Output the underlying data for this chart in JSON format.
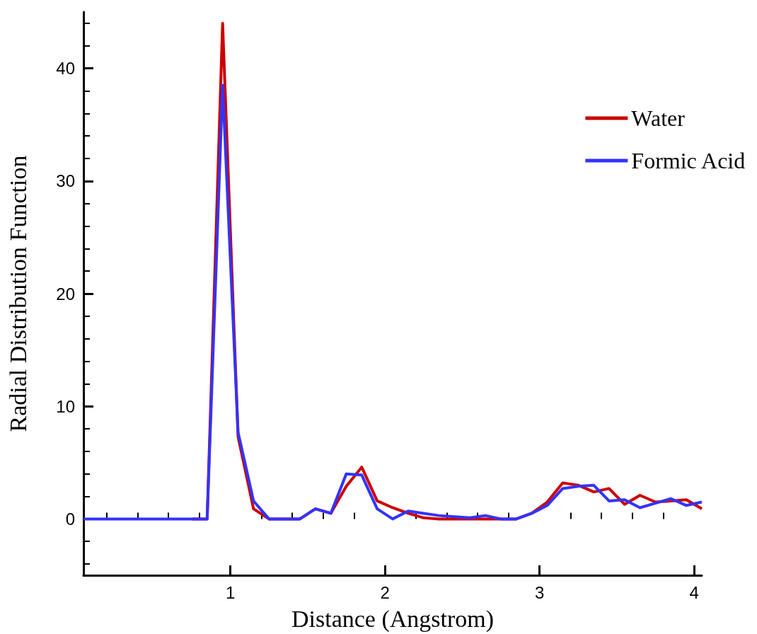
{
  "chart_data": {
    "type": "line",
    "xlabel": "Distance (Angstrom)",
    "ylabel": "Radial Distribution Function",
    "x": [
      0.05,
      0.15,
      0.25,
      0.35,
      0.45,
      0.55,
      0.65,
      0.75,
      0.85,
      0.95,
      1.05,
      1.15,
      1.25,
      1.35,
      1.45,
      1.55,
      1.65,
      1.75,
      1.85,
      1.95,
      2.05,
      2.15,
      2.25,
      2.35,
      2.45,
      2.55,
      2.65,
      2.75,
      2.85,
      2.95,
      3.05,
      3.15,
      3.25,
      3.35,
      3.45,
      3.55,
      3.65,
      3.75,
      3.85,
      3.95,
      4.05
    ],
    "series": [
      {
        "name": "Water",
        "color": "#cc0000",
        "values": [
          null,
          null,
          null,
          null,
          null,
          null,
          null,
          0,
          0,
          44,
          7.3,
          0.9,
          0,
          0,
          0,
          0.9,
          0.5,
          2.9,
          4.6,
          1.6,
          1.0,
          0.5,
          0.1,
          0,
          0,
          0,
          0,
          0,
          0,
          0.5,
          1.5,
          3.2,
          3.0,
          2.4,
          2.7,
          1.3,
          2.1,
          1.5,
          1.6,
          1.7,
          0.9
        ]
      },
      {
        "name": "Formic Acid",
        "color": "#3333ff",
        "values": [
          0,
          0,
          0,
          0,
          0,
          0,
          0,
          0,
          0,
          38.5,
          7.7,
          1.6,
          0,
          0,
          0,
          0.9,
          0.5,
          4.0,
          3.9,
          0.9,
          0,
          0.7,
          0.5,
          0.3,
          0.2,
          0.1,
          0.3,
          0,
          0,
          0.5,
          1.2,
          2.7,
          2.9,
          3.0,
          1.6,
          1.7,
          1.0,
          1.4,
          1.8,
          1.2,
          1.5
        ]
      }
    ],
    "xlim": [
      0.05,
      4.05
    ],
    "xticks": [
      {
        "value": 0.2,
        "label": null
      },
      {
        "value": 0.4,
        "label": null
      },
      {
        "value": 0.6,
        "label": null
      },
      {
        "value": 0.8,
        "label": null
      },
      1,
      {
        "value": 1.2,
        "label": null
      },
      {
        "value": 1.4,
        "label": null
      },
      {
        "value": 1.6,
        "label": null
      },
      {
        "value": 1.8,
        "label": null
      },
      2,
      {
        "value": 2.2,
        "label": null
      },
      {
        "value": 2.4,
        "label": null
      },
      {
        "value": 2.6,
        "label": null
      },
      {
        "value": 2.8,
        "label": null
      },
      3,
      {
        "value": 3.2,
        "label": null
      },
      {
        "value": 3.4,
        "label": null
      },
      {
        "value": 3.6,
        "label": null
      },
      {
        "value": 3.8,
        "label": null
      },
      4
    ],
    "ylim": [
      -5,
      45
    ],
    "yticks": [
      {
        "value": -4,
        "label": null
      },
      {
        "value": -2,
        "label": null
      },
      0,
      {
        "value": 2,
        "label": null
      },
      {
        "value": 4,
        "label": null
      },
      {
        "value": 6,
        "label": null
      },
      {
        "value": 8,
        "label": null
      },
      10,
      {
        "value": 12,
        "label": null
      },
      {
        "value": 14,
        "label": null
      },
      {
        "value": 16,
        "label": null
      },
      {
        "value": 18,
        "label": null
      },
      20,
      {
        "value": 22,
        "label": null
      },
      {
        "value": 24,
        "label": null
      },
      {
        "value": 26,
        "label": null
      },
      {
        "value": 28,
        "label": null
      },
      30,
      {
        "value": 32,
        "label": null
      },
      {
        "value": 34,
        "label": null
      },
      {
        "value": 36,
        "label": null
      },
      {
        "value": 38,
        "label": null
      },
      40,
      {
        "value": 42,
        "label": null
      },
      {
        "value": 44,
        "label": null
      }
    ],
    "legend": "top right",
    "marker": "none",
    "line_style": "solid",
    "grid": false
  }
}
